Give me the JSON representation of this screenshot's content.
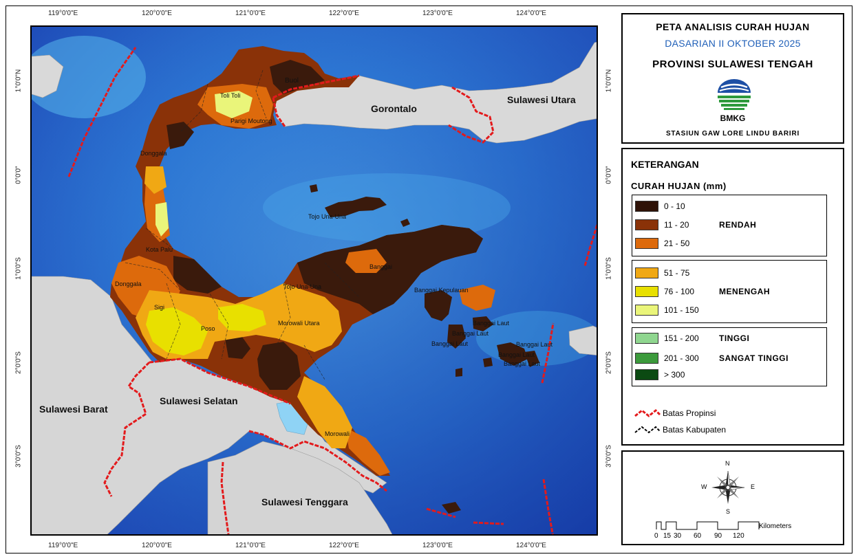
{
  "map": {
    "top_ticks": [
      "119°0'0\"E",
      "120°0'0\"E",
      "121°0'0\"E",
      "122°0'0\"E",
      "123°0'0\"E",
      "124°0'0\"E"
    ],
    "bottom_ticks": [
      "119°0'0\"E",
      "120°0'0\"E",
      "121°0'0\"E",
      "122°0'0\"E",
      "123°0'0\"E",
      "124°0'0\"E"
    ],
    "left_ticks": [
      "1°0'0\"N",
      "0°0'0\"",
      "1°0'0\"S",
      "2°0'0\"S",
      "3°0'0\"S"
    ],
    "right_ticks": [
      "1°0'0\"N",
      "0°0'0\"",
      "1°0'0\"S",
      "2°0'0\"S",
      "3°0'0\"S"
    ],
    "regions": {
      "gorontalo": "Gorontalo",
      "sulut": "Sulawesi Utara",
      "sulbar": "Sulawesi Barat",
      "sulsel": "Sulawesi Selatan",
      "sultra": "Sulawesi Tenggara"
    },
    "places": {
      "buol": "Buol",
      "tolitoli": "Toli Toli",
      "parigi": "Parigi Moutong",
      "donggala_n": "Donggala",
      "palu": "Kota Palu",
      "donggala": "Donggala",
      "sigi": "Sigi",
      "poso": "Poso",
      "tojo1": "Tojo Una-Una",
      "tojo2": "Tojo Una-Una",
      "morut": "Morowali Utara",
      "morowali": "Morowali",
      "banggai": "Banggai",
      "bangkep": "Banggai Kepulauan",
      "bl1": "Banggai Laut",
      "bl2": "Banggai Laut",
      "bl3": "Banggai Laut",
      "bl4": "Banggai Laut",
      "bl5": "Banggai Laut",
      "bl6": "Banggai Laut"
    }
  },
  "title": {
    "line1": "PETA ANALISIS CURAH HUJAN",
    "line2": "DASARIAN II OKTOBER 2025",
    "line3": "PROVINSI SULAWESI TENGAH",
    "logo_text": "BMKG",
    "station": "STASIUN GAW LORE LINDU BARIRI"
  },
  "legend": {
    "heading": "KETERANGAN",
    "subheading": "CURAH HUJAN (mm)",
    "classes": [
      {
        "label": "0 - 10",
        "color": "#2e1207"
      },
      {
        "label": "11 - 20",
        "color": "#8a3208"
      },
      {
        "label": "21 - 50",
        "color": "#dd6a0c"
      },
      {
        "label": "51 - 75",
        "color": "#f0a814"
      },
      {
        "label": "76 - 100",
        "color": "#e8e000"
      },
      {
        "label": "101 - 150",
        "color": "#eaf57a"
      },
      {
        "label": "151 - 200",
        "color": "#8fd68f"
      },
      {
        "label": "201 - 300",
        "color": "#3c9a3c"
      },
      {
        "label": "> 300",
        "color": "#0b4a12"
      }
    ],
    "group_labels": {
      "rendah": "RENDAH",
      "menengah": "MENENGAH",
      "tinggi": "TINGGI",
      "sangat_tinggi": "SANGAT TINGGI"
    },
    "boundary_prov": "Batas Propinsi",
    "boundary_kab": "Batas Kabupaten",
    "boundary_prov_color": "#e31a1c",
    "boundary_kab_color": "#000000"
  },
  "compass": {
    "n": "N",
    "s": "S",
    "e": "E",
    "w": "W"
  },
  "scalebar": {
    "unit": "Kilometers",
    "ticks": [
      "0",
      "15",
      "30",
      "60",
      "90",
      "120"
    ]
  }
}
